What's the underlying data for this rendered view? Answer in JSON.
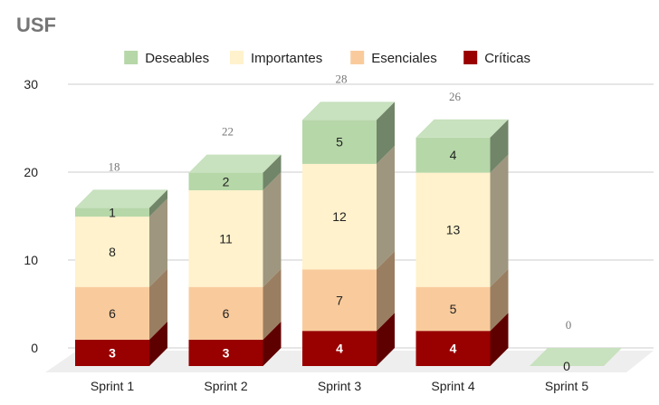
{
  "chart_data": {
    "type": "bar",
    "stacked": true,
    "three_d": true,
    "title": "USF",
    "categories": [
      "Sprint 1",
      "Sprint 2",
      "Sprint 3",
      "Sprint 4",
      "Sprint 5"
    ],
    "series": [
      {
        "name": "Críticas",
        "color": "#990000",
        "values": [
          3,
          3,
          4,
          4,
          0
        ]
      },
      {
        "name": "Esenciales",
        "color": "#F9CB9C",
        "values": [
          6,
          6,
          7,
          5,
          0
        ]
      },
      {
        "name": "Importantes",
        "color": "#FFF2CC",
        "values": [
          8,
          11,
          12,
          13,
          0
        ]
      },
      {
        "name": "Deseables",
        "color": "#B6D7A8",
        "values": [
          1,
          2,
          5,
          4,
          0
        ]
      }
    ],
    "totals": [
      "18",
      "22",
      "28",
      "26",
      "0"
    ],
    "segment_labels": [
      {
        "category": "Sprint 1",
        "series": "Críticas",
        "text": "3"
      },
      {
        "category": "Sprint 1",
        "series": "Esenciales",
        "text": "6"
      },
      {
        "category": "Sprint 1",
        "series": "Importantes",
        "text": "8"
      },
      {
        "category": "Sprint 1",
        "series": "Deseables",
        "text": "1"
      },
      {
        "category": "Sprint 2",
        "series": "Críticas",
        "text": "3"
      },
      {
        "category": "Sprint 2",
        "series": "Esenciales",
        "text": "6"
      },
      {
        "category": "Sprint 2",
        "series": "Importantes",
        "text": "11"
      },
      {
        "category": "Sprint 2",
        "series": "Deseables",
        "text": "2"
      },
      {
        "category": "Sprint 3",
        "series": "Críticas",
        "text": "4"
      },
      {
        "category": "Sprint 3",
        "series": "Esenciales",
        "text": "7"
      },
      {
        "category": "Sprint 3",
        "series": "Importantes",
        "text": "12"
      },
      {
        "category": "Sprint 3",
        "series": "Deseables",
        "text": "5"
      },
      {
        "category": "Sprint 4",
        "series": "Críticas",
        "text": "4"
      },
      {
        "category": "Sprint 4",
        "series": "Esenciales",
        "text": "5"
      },
      {
        "category": "Sprint 4",
        "series": "Importantes",
        "text": "13"
      },
      {
        "category": "Sprint 4",
        "series": "Deseables",
        "text": "4"
      },
      {
        "category": "Sprint 5",
        "series": "Deseables",
        "text": "0"
      }
    ],
    "yticks": [
      "0",
      "10",
      "20",
      "30"
    ],
    "ylim": [
      0,
      30
    ],
    "grid": true,
    "legend": [
      "Deseables",
      "Importantes",
      "Esenciales",
      "Críticas"
    ],
    "legend_position": "top"
  }
}
